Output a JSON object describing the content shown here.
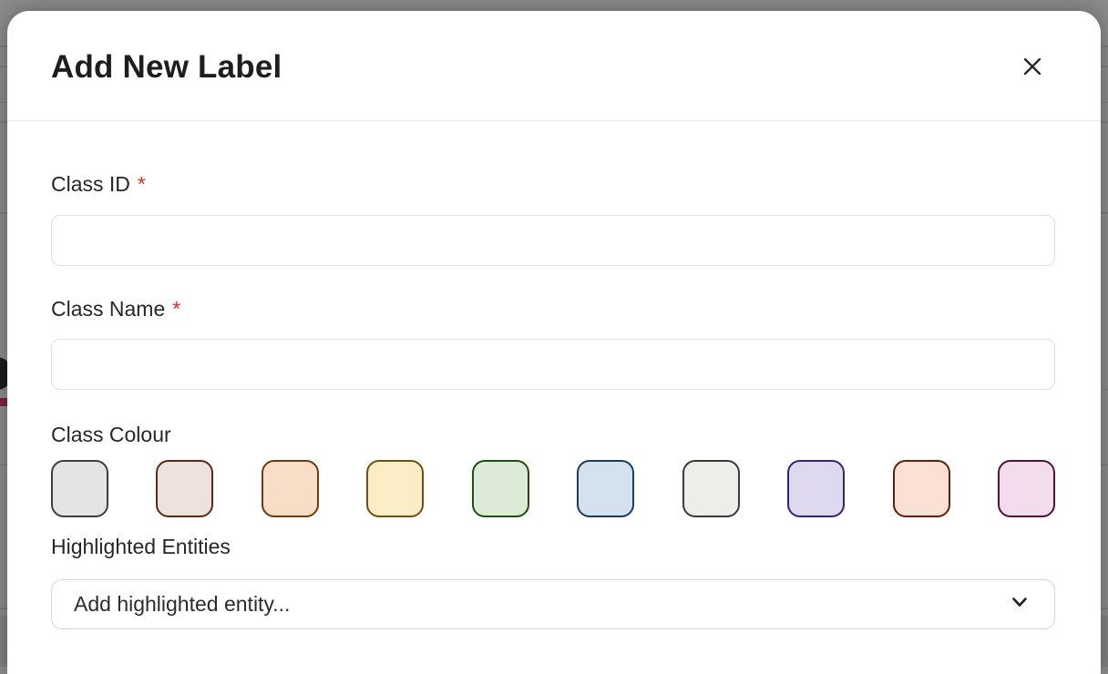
{
  "overlay": {
    "backdrop_color": "#8c8a8a",
    "accent_bar_color": "#7d2240"
  },
  "modal": {
    "title": "Add New Label",
    "required_marker": "*",
    "required_color": "#e02b2b",
    "icons": {
      "close": "✕",
      "chevron_down": "⌄"
    },
    "fields": [
      {
        "label": "Class ID",
        "required": true,
        "value": "",
        "placeholder": ""
      },
      {
        "label": "Class Name",
        "required": true,
        "value": "",
        "placeholder": ""
      }
    ],
    "colour_section": {
      "label": "Class Colour",
      "swatches": [
        {
          "name": "grey",
          "fill": "#e4e4e4",
          "border": "#3f3e3e"
        },
        {
          "name": "dusty-rose",
          "fill": "#eee2dd",
          "border": "#5a291b"
        },
        {
          "name": "peach-orange",
          "fill": "#f8dec6",
          "border": "#703a11"
        },
        {
          "name": "light-yellow",
          "fill": "#fbeec7",
          "border": "#6e4f10"
        },
        {
          "name": "light-green",
          "fill": "#dcead7",
          "border": "#1f4e11"
        },
        {
          "name": "light-blue",
          "fill": "#d3e2ee",
          "border": "#1f3a5c"
        },
        {
          "name": "off-white",
          "fill": "#ededea",
          "border": "#3b3a38"
        },
        {
          "name": "lavender",
          "fill": "#ded9ee",
          "border": "#38217a"
        },
        {
          "name": "light-salmon",
          "fill": "#fbe1d5",
          "border": "#641d08"
        },
        {
          "name": "light-pink",
          "fill": "#f3ddec",
          "border": "#581031"
        }
      ]
    },
    "entities_section": {
      "label": "Highlighted Entities",
      "dropdown_placeholder": "Add highlighted entity..."
    }
  }
}
